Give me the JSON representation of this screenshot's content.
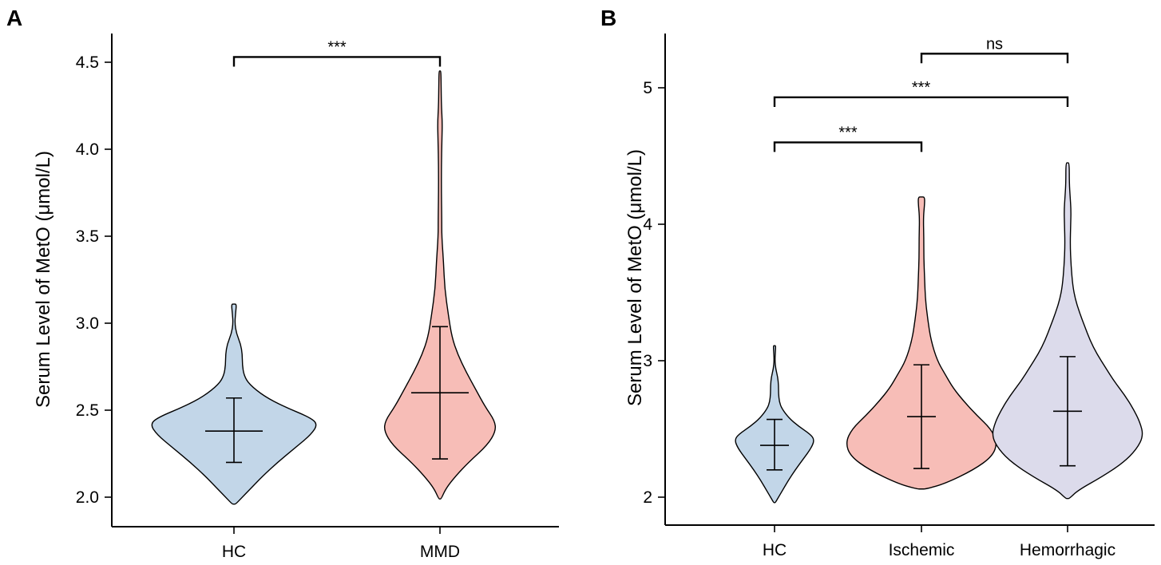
{
  "chart_data": [
    {
      "panel": "A",
      "type": "violin",
      "ylabel": "Serum Level of MetO (μmol/L)",
      "ylim": [
        1.95,
        4.65
      ],
      "yticks": [
        2.0,
        2.5,
        3.0,
        3.5,
        4.0,
        4.5
      ],
      "ytick_labels": [
        "2.0",
        "2.5",
        "3.0",
        "3.5",
        "4.0",
        "4.5"
      ],
      "categories": [
        "HC",
        "MMD"
      ],
      "groups": [
        {
          "name": "HC",
          "color": "#c2d6e8",
          "mean": 2.38,
          "sd_low": 2.2,
          "sd_high": 2.57,
          "profile": [
            [
              1.96,
              0.02
            ],
            [
              1.99,
              0.08
            ],
            [
              2.05,
              0.2
            ],
            [
              2.12,
              0.34
            ],
            [
              2.2,
              0.52
            ],
            [
              2.28,
              0.72
            ],
            [
              2.36,
              0.92
            ],
            [
              2.42,
              1.0
            ],
            [
              2.46,
              0.9
            ],
            [
              2.52,
              0.6
            ],
            [
              2.58,
              0.36
            ],
            [
              2.65,
              0.18
            ],
            [
              2.7,
              0.12
            ],
            [
              2.76,
              0.1
            ],
            [
              2.82,
              0.1
            ],
            [
              2.88,
              0.08
            ],
            [
              2.94,
              0.03
            ],
            [
              3.0,
              0.01
            ],
            [
              3.06,
              0.02
            ],
            [
              3.11,
              0.03
            ]
          ]
        },
        {
          "name": "MMD",
          "color": "#f7bdb7",
          "mean": 2.6,
          "sd_low": 2.22,
          "sd_high": 2.98,
          "profile": [
            [
              1.99,
              0.01
            ],
            [
              2.05,
              0.05
            ],
            [
              2.12,
              0.13
            ],
            [
              2.2,
              0.24
            ],
            [
              2.3,
              0.4
            ],
            [
              2.38,
              0.47
            ],
            [
              2.44,
              0.46
            ],
            [
              2.52,
              0.38
            ],
            [
              2.62,
              0.3
            ],
            [
              2.72,
              0.22
            ],
            [
              2.82,
              0.15
            ],
            [
              2.92,
              0.1
            ],
            [
              3.05,
              0.07
            ],
            [
              3.2,
              0.04
            ],
            [
              3.35,
              0.03
            ],
            [
              3.5,
              0.015
            ],
            [
              3.6,
              0.015
            ],
            [
              3.75,
              0.012
            ],
            [
              3.9,
              0.012
            ],
            [
              4.05,
              0.016
            ],
            [
              4.15,
              0.02
            ],
            [
              4.25,
              0.012
            ],
            [
              4.35,
              0.01
            ],
            [
              4.45,
              0.008
            ]
          ]
        }
      ],
      "comparisons": [
        {
          "from": "HC",
          "to": "MMD",
          "y": 4.53,
          "label": "***"
        }
      ]
    },
    {
      "panel": "B",
      "type": "violin",
      "ylabel": "Serum Level of MetO (μmol/L)",
      "ylim": [
        1.8,
        5.4
      ],
      "yticks": [
        2,
        3,
        4,
        5
      ],
      "ytick_labels": [
        "2",
        "3",
        "4",
        "5"
      ],
      "categories": [
        "HC",
        "Ischemic",
        "Hemorrhagic"
      ],
      "groups": [
        {
          "name": "HC",
          "color": "#c2d6e8",
          "mean": 2.38,
          "sd_low": 2.2,
          "sd_high": 2.57,
          "profile": [
            [
              1.96,
              0.02
            ],
            [
              1.99,
              0.08
            ],
            [
              2.05,
              0.2
            ],
            [
              2.12,
              0.34
            ],
            [
              2.2,
              0.52
            ],
            [
              2.28,
              0.72
            ],
            [
              2.36,
              0.92
            ],
            [
              2.42,
              1.0
            ],
            [
              2.46,
              0.9
            ],
            [
              2.52,
              0.6
            ],
            [
              2.58,
              0.36
            ],
            [
              2.65,
              0.18
            ],
            [
              2.7,
              0.12
            ],
            [
              2.76,
              0.1
            ],
            [
              2.82,
              0.1
            ],
            [
              2.88,
              0.08
            ],
            [
              2.94,
              0.03
            ],
            [
              3.0,
              0.01
            ],
            [
              3.06,
              0.02
            ],
            [
              3.11,
              0.03
            ]
          ]
        },
        {
          "name": "Ischemic",
          "color": "#f7bdb7",
          "mean": 2.59,
          "sd_low": 2.21,
          "sd_high": 2.97,
          "profile": [
            [
              2.06,
              0.03
            ],
            [
              2.1,
              0.15
            ],
            [
              2.2,
              0.33
            ],
            [
              2.3,
              0.45
            ],
            [
              2.4,
              0.48
            ],
            [
              2.5,
              0.44
            ],
            [
              2.6,
              0.35
            ],
            [
              2.7,
              0.27
            ],
            [
              2.8,
              0.2
            ],
            [
              2.9,
              0.15
            ],
            [
              3.0,
              0.1
            ],
            [
              3.15,
              0.06
            ],
            [
              3.3,
              0.04
            ],
            [
              3.45,
              0.025
            ],
            [
              3.6,
              0.02
            ],
            [
              3.75,
              0.015
            ],
            [
              3.9,
              0.015
            ],
            [
              4.05,
              0.012
            ],
            [
              4.15,
              0.02
            ],
            [
              4.2,
              0.02
            ]
          ]
        },
        {
          "name": "Hemorrhagic",
          "color": "#dcdbeb",
          "mean": 2.63,
          "sd_low": 2.23,
          "sd_high": 3.03,
          "profile": [
            [
              1.99,
              0.01
            ],
            [
              2.05,
              0.06
            ],
            [
              2.15,
              0.2
            ],
            [
              2.25,
              0.32
            ],
            [
              2.35,
              0.4
            ],
            [
              2.45,
              0.44
            ],
            [
              2.55,
              0.42
            ],
            [
              2.65,
              0.38
            ],
            [
              2.75,
              0.33
            ],
            [
              2.85,
              0.27
            ],
            [
              2.95,
              0.22
            ],
            [
              3.05,
              0.17
            ],
            [
              3.15,
              0.13
            ],
            [
              3.25,
              0.1
            ],
            [
              3.35,
              0.07
            ],
            [
              3.45,
              0.045
            ],
            [
              3.55,
              0.03
            ],
            [
              3.7,
              0.02
            ],
            [
              3.85,
              0.015
            ],
            [
              4.0,
              0.018
            ],
            [
              4.1,
              0.02
            ],
            [
              4.2,
              0.015
            ],
            [
              4.3,
              0.01
            ],
            [
              4.45,
              0.01
            ]
          ]
        }
      ],
      "comparisons": [
        {
          "from": "Ischemic",
          "to": "Hemorrhagic",
          "y": 5.25,
          "label": "ns"
        },
        {
          "from": "HC",
          "to": "Hemorrhagic",
          "y": 4.93,
          "label": "***"
        },
        {
          "from": "HC",
          "to": "Ischemic",
          "y": 4.6,
          "label": "***"
        }
      ]
    }
  ]
}
